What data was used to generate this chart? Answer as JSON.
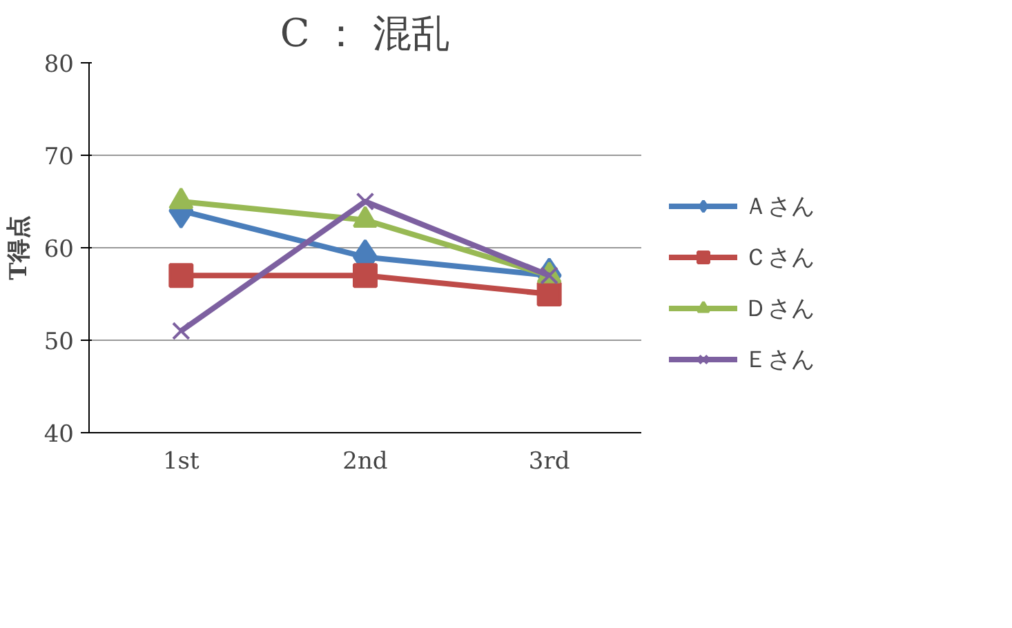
{
  "chart_data": {
    "type": "line",
    "title": "C ： 混乱",
    "ylabel": "T得点",
    "categories": [
      "1st",
      "2nd",
      "3rd"
    ],
    "series": [
      {
        "name": "Ａさん",
        "color": "#4a7ebb",
        "marker": "diamond",
        "values": [
          64,
          59,
          57
        ]
      },
      {
        "name": "Ｃさん",
        "color": "#be4b48",
        "marker": "square",
        "values": [
          57,
          57,
          55
        ]
      },
      {
        "name": "Ｄさん",
        "color": "#98b954",
        "marker": "triangle",
        "values": [
          65,
          63,
          57
        ]
      },
      {
        "name": "Ｅさん",
        "color": "#7d60a0",
        "marker": "cross",
        "values": [
          51,
          65,
          57
        ]
      }
    ],
    "ylim": [
      40,
      80
    ],
    "yticks": [
      40,
      50,
      60,
      70,
      80
    ],
    "grid": "y",
    "legend": "right",
    "line_style": "solid"
  }
}
